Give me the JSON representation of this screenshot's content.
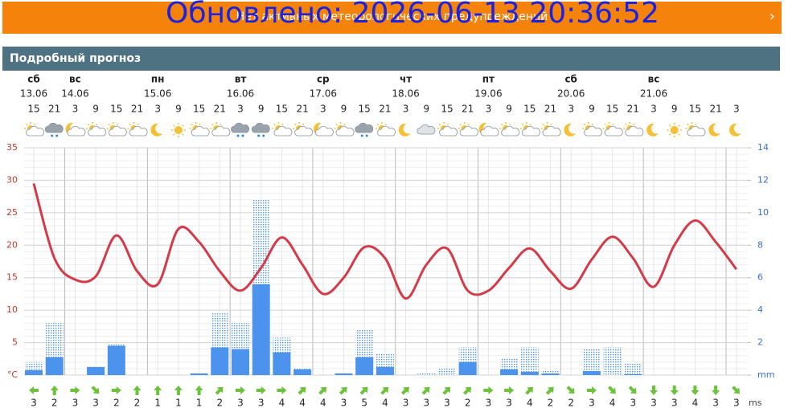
{
  "header": {
    "warning": "Нет активных метеорологических предупреждений",
    "updated": "Обновлено: 2026-06-13 20:36:52"
  },
  "section_title": "Подробный прогноз",
  "days": [
    {
      "weekday": "сб",
      "date": "13.06"
    },
    {
      "weekday": "вс",
      "date": "14.06"
    },
    {
      "weekday": "пн",
      "date": "15.06"
    },
    {
      "weekday": "вт",
      "date": "16.06"
    },
    {
      "weekday": "ср",
      "date": "17.06"
    },
    {
      "weekday": "чт",
      "date": "18.06"
    },
    {
      "weekday": "пт",
      "date": "19.06"
    },
    {
      "weekday": "сб",
      "date": "20.06"
    },
    {
      "weekday": "вс",
      "date": "21.06"
    }
  ],
  "chart_data": {
    "type": "line",
    "categories": [
      "15",
      "21",
      "3",
      "9",
      "15",
      "21",
      "3",
      "9",
      "15",
      "21",
      "3",
      "9",
      "15",
      "21",
      "3",
      "9",
      "15",
      "21",
      "3",
      "9",
      "15",
      "21",
      "3",
      "9",
      "15",
      "21",
      "3",
      "9",
      "15",
      "21",
      "3",
      "9",
      "15",
      "21",
      "3"
    ],
    "ylim": [
      0,
      35
    ],
    "yticks": [
      {
        "value": 0,
        "label": "°C"
      },
      5,
      10,
      15,
      20,
      25,
      30,
      35
    ],
    "y2lim": [
      0,
      14
    ],
    "y2ticks": [
      {
        "value": 0,
        "label": "mm"
      },
      2,
      4,
      6,
      8,
      10,
      12,
      14
    ],
    "grid": true,
    "series": [
      {
        "type": "line",
        "color": "#d43a48",
        "values": [
          29.5,
          18,
          14.7,
          15.2,
          21.5,
          16,
          14,
          22.5,
          20.5,
          16,
          13,
          16.5,
          21.2,
          17,
          12.5,
          15,
          19.7,
          18,
          11.8,
          17,
          19.5,
          13,
          13,
          16.5,
          19.5,
          16,
          13.3,
          17.8,
          21.3,
          18,
          13.6,
          20,
          23.8,
          20.5,
          16.3
        ]
      },
      {
        "type": "bar",
        "style": "dotted",
        "axis": "y2",
        "color": "#4c93ee",
        "values": [
          0.8,
          3.2,
          0,
          0.5,
          1.9,
          0,
          0,
          0,
          0.1,
          3.8,
          3.2,
          10.8,
          2.3,
          0.4,
          0,
          0.1,
          2.8,
          1.3,
          0,
          0.1,
          0.4,
          1.7,
          0,
          1.0,
          1.7,
          0.25,
          0,
          1.6,
          1.7,
          0.7,
          0,
          0,
          0,
          0,
          0
        ]
      },
      {
        "type": "bar",
        "style": "solid",
        "axis": "y2",
        "color": "#4c93ee",
        "values": [
          0.3,
          1.1,
          0,
          0.5,
          1.8,
          0,
          0,
          0,
          0.1,
          1.7,
          1.6,
          5.6,
          1.4,
          0.35,
          0,
          0.1,
          1.1,
          0.5,
          0,
          0,
          0,
          0.8,
          0,
          0.35,
          0.2,
          0.1,
          0,
          0.25,
          0,
          0.05,
          0,
          0,
          0,
          0,
          0
        ]
      }
    ],
    "wind": {
      "unit": "ms",
      "speeds": [
        3,
        2,
        3,
        3,
        2,
        2,
        1,
        1,
        1,
        2,
        3,
        3,
        4,
        4,
        4,
        3,
        5,
        4,
        3,
        3,
        3,
        2,
        3,
        3,
        4,
        2,
        2,
        3,
        4,
        3,
        3,
        3,
        4,
        3,
        3
      ],
      "directions": [
        270,
        0,
        90,
        135,
        90,
        0,
        0,
        0,
        0,
        45,
        90,
        90,
        90,
        45,
        45,
        45,
        45,
        45,
        45,
        45,
        45,
        45,
        90,
        90,
        45,
        45,
        135,
        90,
        135,
        135,
        180,
        180,
        180,
        180,
        135
      ]
    }
  }
}
